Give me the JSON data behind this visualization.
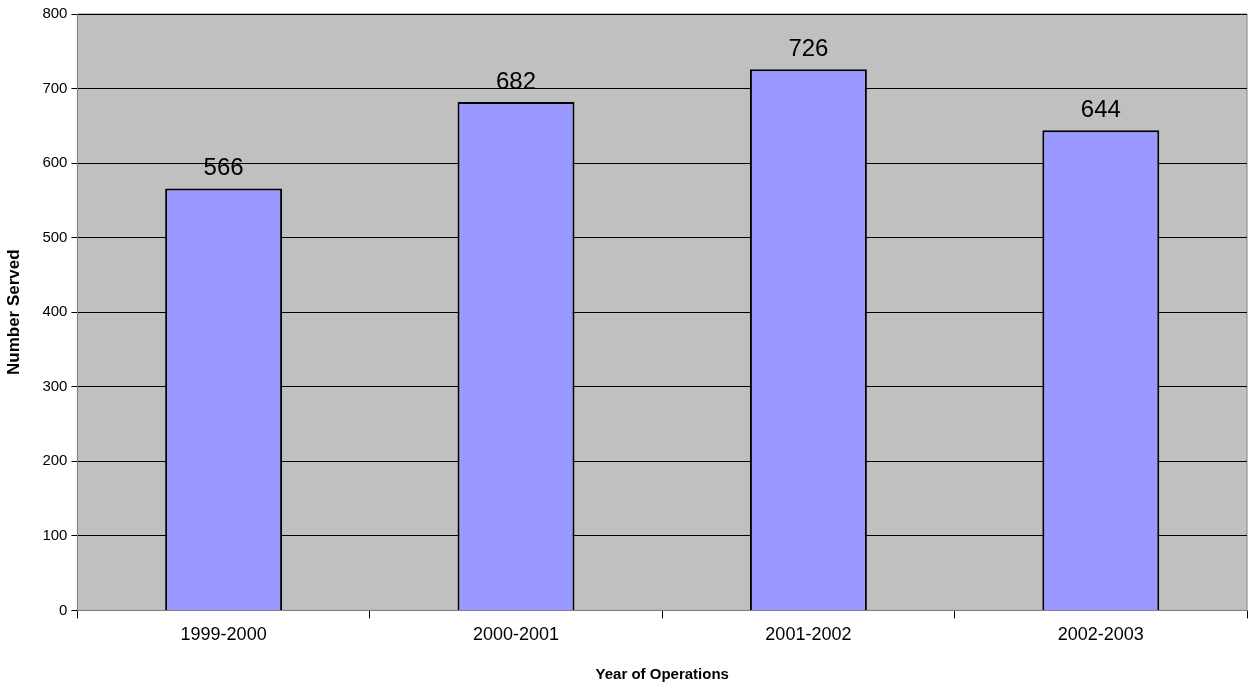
{
  "chart_data": {
    "type": "bar",
    "xlabel": "Year of Operations",
    "ylabel": "Number Served",
    "categories": [
      "1999-2000",
      "2000-2001",
      "2001-2002",
      "2002-2003"
    ],
    "values": [
      566,
      682,
      726,
      644
    ],
    "color": "#9999ff",
    "ylim": [
      0,
      800
    ],
    "yticks": [
      0,
      100,
      200,
      300,
      400,
      500,
      600,
      700,
      800
    ],
    "grid": "y",
    "data_labels": true,
    "legend": false
  }
}
